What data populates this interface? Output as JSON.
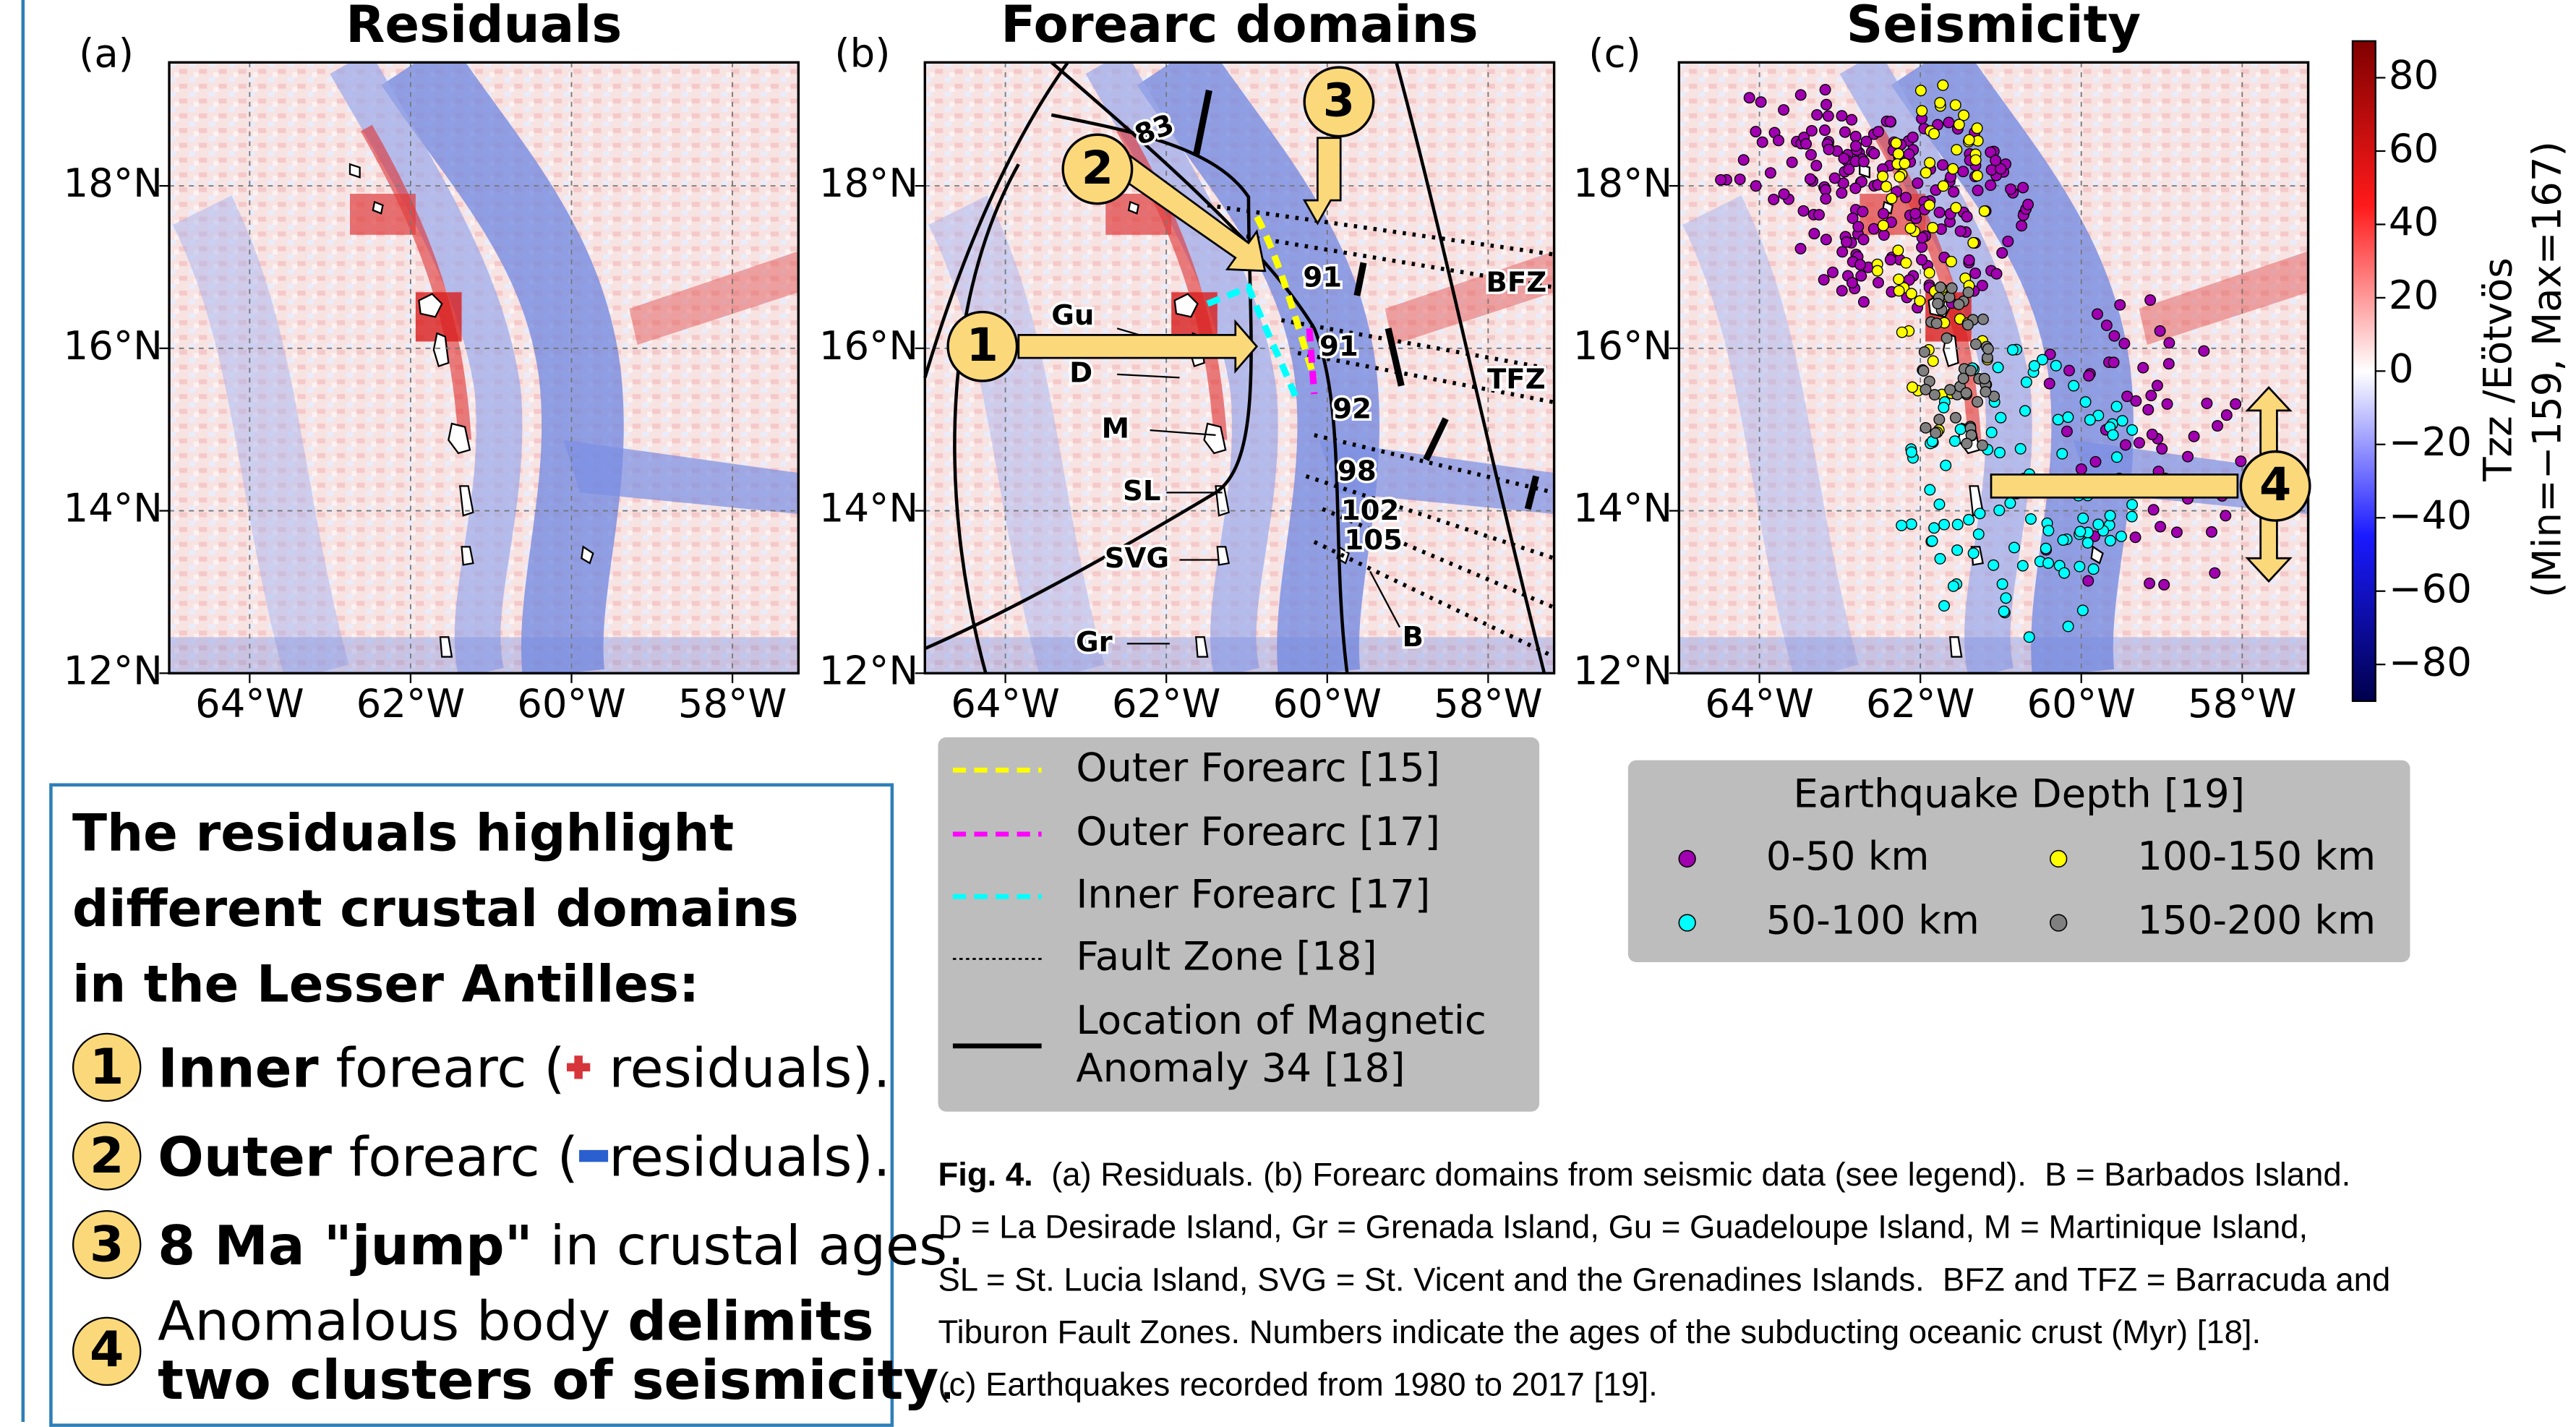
{
  "panels": [
    {
      "label": "(a)",
      "title": "Residuals"
    },
    {
      "label": "(b)",
      "title": "Forearc domains"
    },
    {
      "label": "(c)",
      "title": "Seismicity"
    }
  ],
  "axes": {
    "xlim": [
      -65,
      -57.18
    ],
    "ylim": [
      12,
      19.52
    ],
    "xticks": [
      {
        "value": -64,
        "label": "64°W"
      },
      {
        "value": -62,
        "label": "62°W"
      },
      {
        "value": -60,
        "label": "60°W"
      },
      {
        "value": -58,
        "label": "58°W"
      }
    ],
    "yticks": [
      {
        "value": 12,
        "label": "12°N"
      },
      {
        "value": 14,
        "label": "14°N"
      },
      {
        "value": 16,
        "label": "16°N"
      },
      {
        "value": 18,
        "label": "18°N"
      }
    ]
  },
  "map_labels": [
    "83",
    "91",
    "91",
    "92",
    "98",
    "102",
    "105",
    "BFZ",
    "TFZ",
    "Gu",
    "D",
    "M",
    "SL",
    "SVG",
    "Gr",
    "B"
  ],
  "callouts": [
    "1",
    "2",
    "3",
    "4"
  ],
  "colorbar": {
    "label": [
      "Tzz /Eötvös",
      "(Min=−159, Max=167)"
    ],
    "lim": [
      -90,
      90
    ],
    "ticks": [
      80,
      60,
      40,
      20,
      0,
      {
        "value": -20,
        "label": "−20"
      },
      {
        "value": -40,
        "label": "−40"
      },
      {
        "value": -60,
        "label": "−60"
      },
      {
        "value": -80,
        "label": "−80"
      }
    ]
  },
  "legend_b": [
    {
      "name": "Outer Forearc [15]",
      "color": "#ffff00"
    },
    {
      "name": "Outer Forearc [17]",
      "color": "#ff00ff"
    },
    {
      "name": "Inner Forearc [17]",
      "color": "#00ffff"
    },
    {
      "name": "Fault Zone [18]",
      "color": "#000000"
    },
    {
      "name": "Location of Magnetic Anomaly 34 [18]",
      "color": "#000000"
    }
  ],
  "legend_c": {
    "title": "Earthquake Depth [19]",
    "entries": [
      {
        "name": "0-50 km",
        "color": "#a000b0"
      },
      {
        "name": "100-150 km",
        "color": "#ffff00"
      },
      {
        "name": "50-100 km",
        "color": "#00ffff"
      },
      {
        "name": "150-200 km",
        "color": "#808080"
      }
    ]
  },
  "textbox": {
    "heading": "The residuals highlight different crustal domains in the Lesser Antilles:",
    "items": [
      {
        "number": "1",
        "bold": "Inner",
        "text": " forearc (",
        "after": " residuals)."
      },
      {
        "number": "2",
        "bold": "Outer",
        "text": " forearc (",
        "after": "residuals)."
      },
      {
        "number": "3",
        "bold": "8 Ma \"jump\"",
        "text": " in crustal ages."
      },
      {
        "number": "4",
        "text": "Anomalous body ",
        "bold": "delimits",
        "bold2": "two clusters of seismicity",
        "after": "."
      }
    ]
  },
  "caption": {
    "label": "Fig. 4.",
    "lines": [
      "(a) Residuals. (b) Forearc domains from seismic data (see legend).  B = Barbados Island.",
      "D = La Desirade Island, Gr = Grenada Island, Gu = Guadeloupe Island, M = Martinique Island,",
      "SL = St. Lucia Island, SVG = St. Vicent and the Grenadines Islands.  BFZ and TFZ = Barracuda and",
      "Tiburon Fault Zones. Numbers indicate the ages of the subducting oceanic crust (Myr) [18].",
      "(c) Earthquakes recorded from 1980 to 2017 [19]."
    ]
  }
}
